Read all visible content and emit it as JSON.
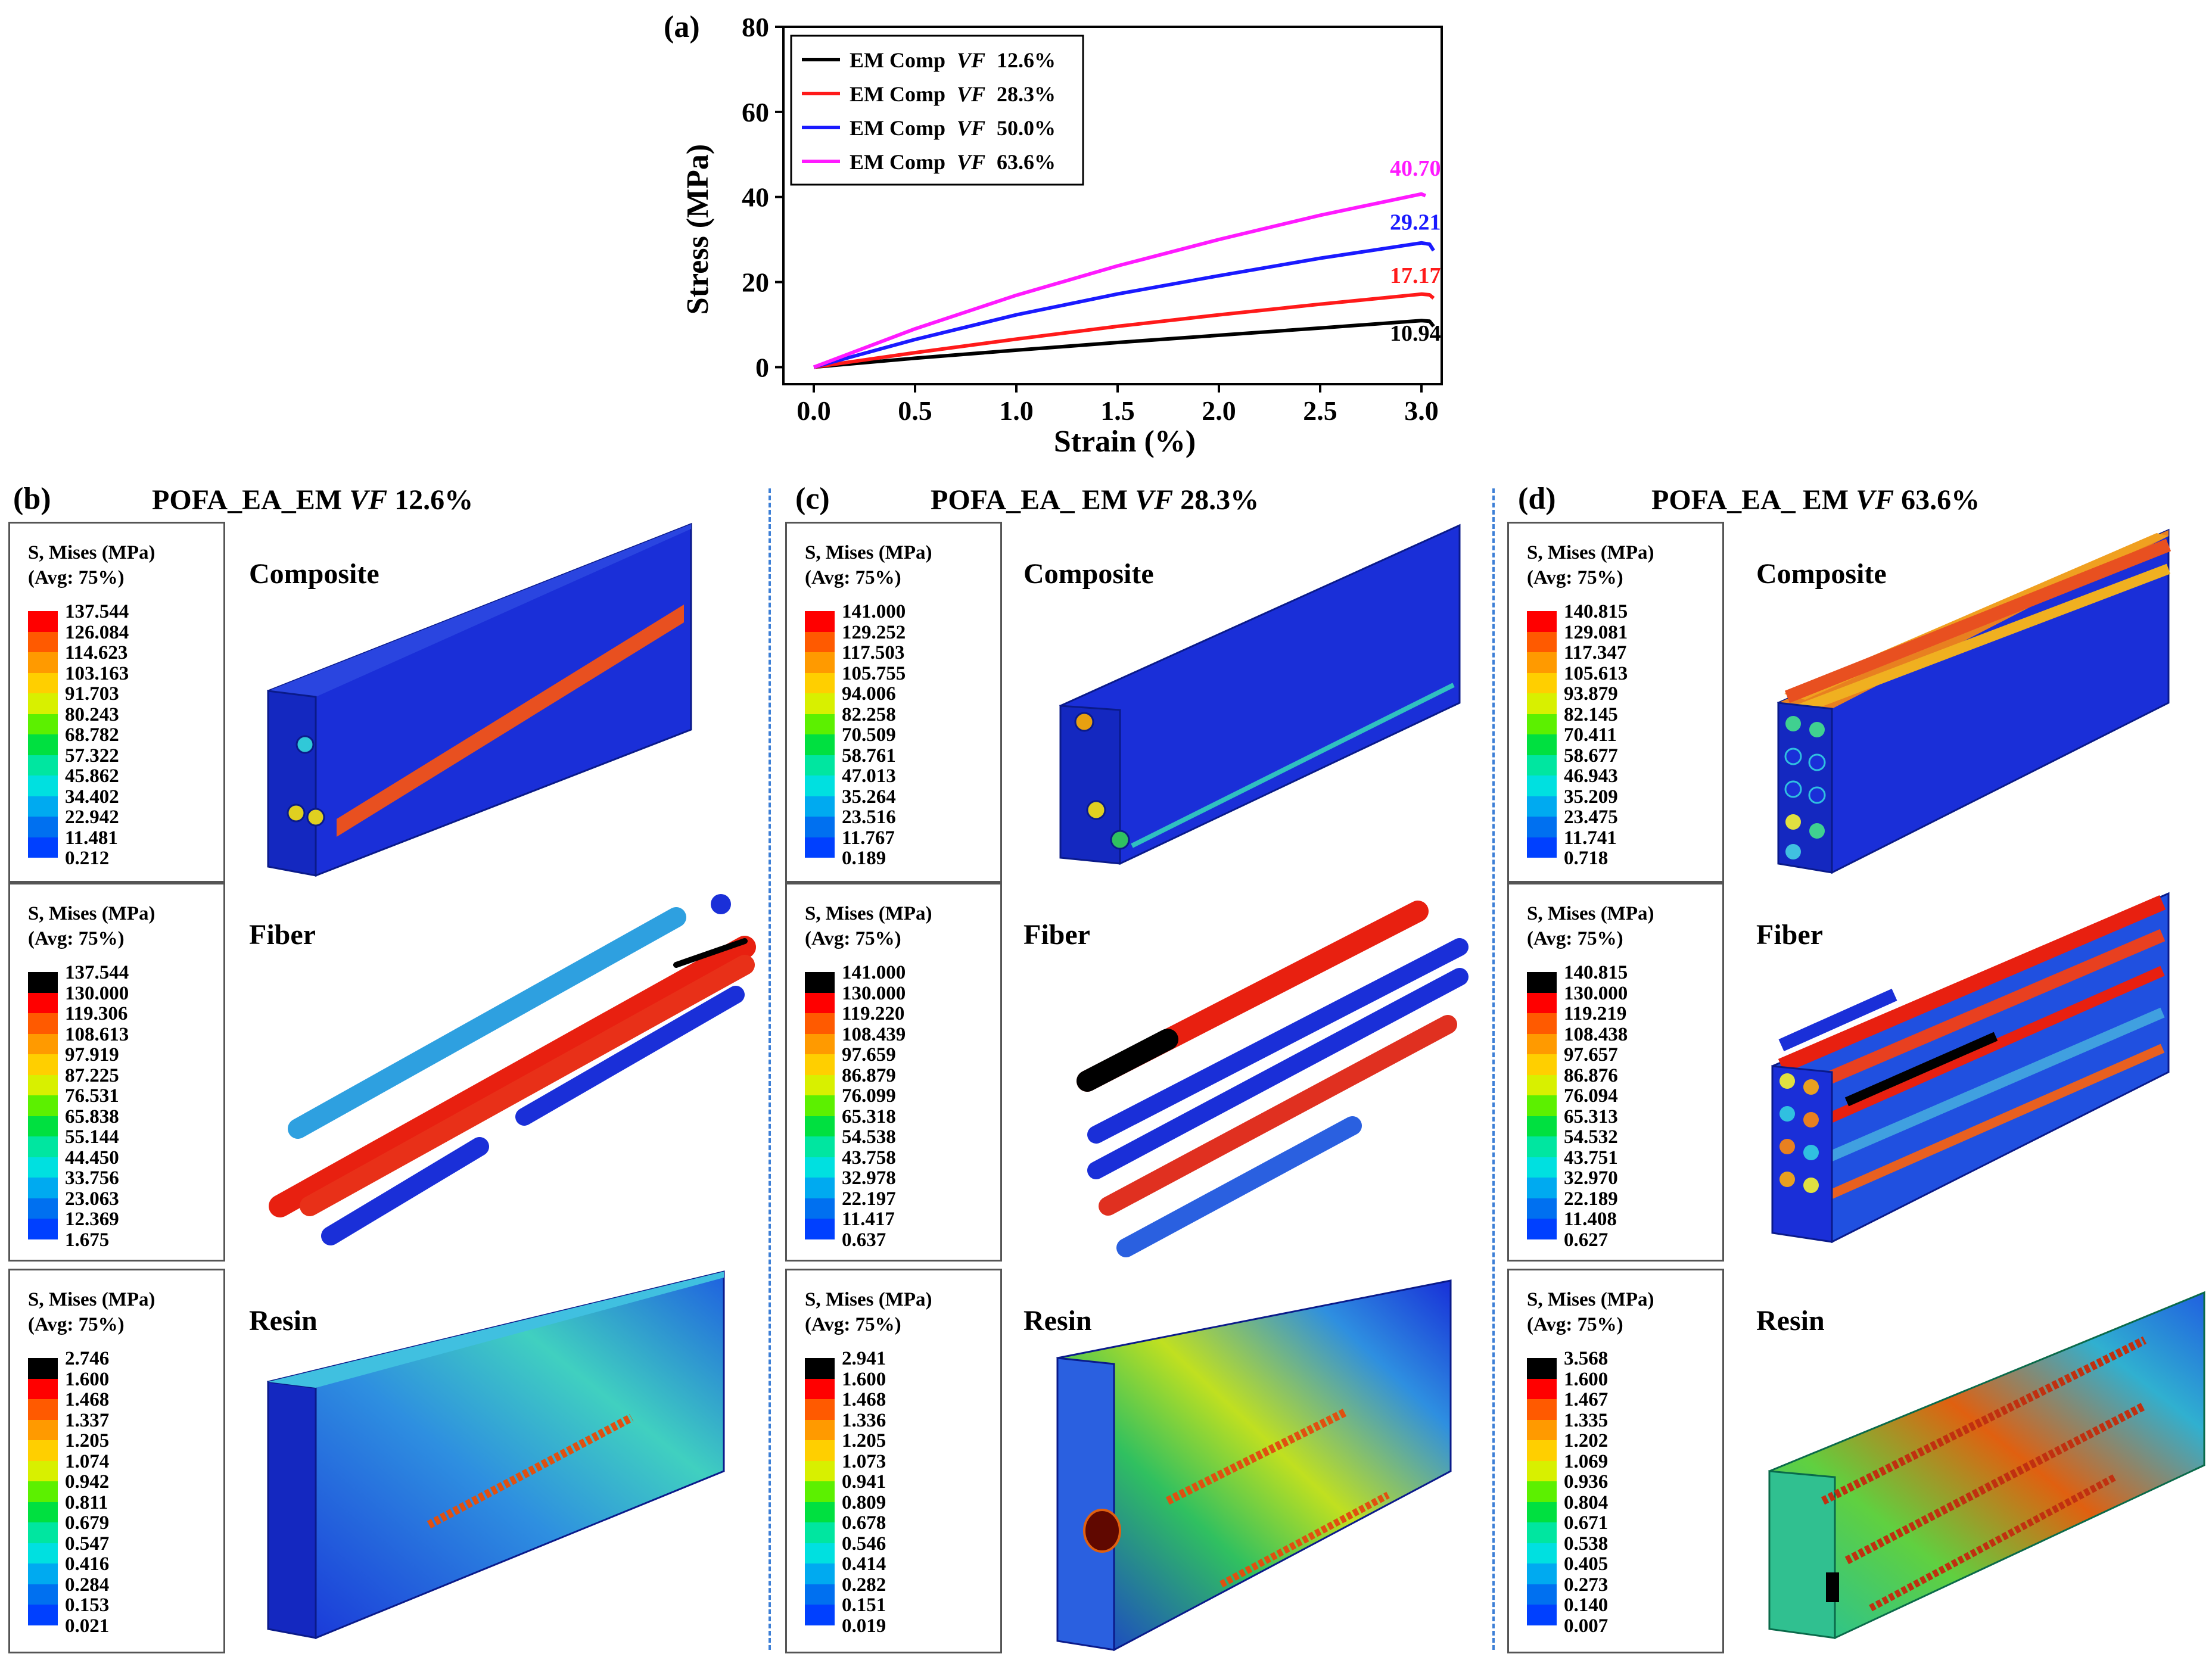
{
  "chart_data": {
    "type": "line",
    "panel_label": "(a)",
    "xlabel": "Strain (%)",
    "ylabel": "Stress (MPa)",
    "xlim": [
      -0.15,
      3.1
    ],
    "ylim": [
      -4,
      80
    ],
    "xticks": [
      "0.0",
      "0.5",
      "1.0",
      "1.5",
      "2.0",
      "2.5",
      "3.0"
    ],
    "yticks": [
      "0",
      "20",
      "40",
      "60",
      "80"
    ],
    "legend_position": "top-left",
    "series": [
      {
        "name": "EM Comp VF 12.6%",
        "prefix": "EM Comp ",
        "vf": "VF",
        "suffix": " 12.6%",
        "color": "#000000",
        "x": [
          0,
          0.5,
          1.0,
          1.5,
          2.0,
          2.5,
          3.0,
          3.04,
          3.06
        ],
        "y": [
          0,
          2.1,
          4.0,
          5.8,
          7.5,
          9.2,
          10.94,
          10.8,
          9.6
        ],
        "label": "10.94",
        "label_at": [
          2.97,
          6.2
        ]
      },
      {
        "name": "EM Comp VF 28.3%",
        "prefix": "EM Comp ",
        "vf": "VF",
        "suffix": " 28.3%",
        "color": "#ff1a1a",
        "x": [
          0,
          0.5,
          1.0,
          1.5,
          2.0,
          2.5,
          3.0,
          3.04,
          3.06
        ],
        "y": [
          0,
          3.4,
          6.6,
          9.6,
          12.3,
          14.8,
          17.17,
          17.0,
          16.2
        ],
        "label": "17.17",
        "label_at": [
          2.97,
          19.8
        ]
      },
      {
        "name": "EM Comp VF 50.0%",
        "prefix": "EM Comp ",
        "vf": "VF",
        "suffix": " 50.0%",
        "color": "#1a1aff",
        "x": [
          0,
          0.5,
          1.0,
          1.5,
          2.0,
          2.5,
          3.0,
          3.04,
          3.06
        ],
        "y": [
          0,
          6.5,
          12.3,
          17.2,
          21.5,
          25.6,
          29.21,
          28.9,
          27.4
        ],
        "label": "29.21",
        "label_at": [
          2.97,
          32.3
        ]
      },
      {
        "name": "EM Comp VF 63.6%",
        "prefix": "EM Comp ",
        "vf": "VF",
        "suffix": " 63.6%",
        "color": "#ff1aff",
        "x": [
          0,
          0.5,
          1.0,
          1.5,
          2.0,
          2.5,
          3.0,
          3.02
        ],
        "y": [
          0,
          9.0,
          16.9,
          23.8,
          30.0,
          35.7,
          40.7,
          40.3
        ],
        "label": "40.70",
        "label_at": [
          2.97,
          45.0
        ]
      }
    ]
  },
  "panels": [
    {
      "label": "(b)",
      "title_prefix": "POFA_EA_EM  ",
      "title_vf": "VF",
      "title_suffix": " 12.6%",
      "parts": [
        {
          "name": "Composite",
          "legend_line1": "S, Mises  (MPa)",
          "legend_line2": "(Avg: 75%)",
          "values": [
            "137.544",
            "126.084",
            "114.623",
            "103.163",
            "91.703",
            "80.243",
            "68.782",
            "57.322",
            "45.862",
            "34.402",
            "22.942",
            "11.481",
            "0.212"
          ]
        },
        {
          "name": "Fiber",
          "legend_line1": "S, Mises  (MPa)",
          "legend_line2": "(Avg: 75%)",
          "values": [
            "137.544",
            "130.000",
            "119.306",
            "108.613",
            "97.919",
            "87.225",
            "76.531",
            "65.838",
            "55.144",
            "44.450",
            "33.756",
            "23.063",
            "12.369",
            "1.675"
          ]
        },
        {
          "name": "Resin",
          "legend_line1": "S, Mises  (MPa)",
          "legend_line2": "(Avg: 75%)",
          "values": [
            "2.746",
            "1.600",
            "1.468",
            "1.337",
            "1.205",
            "1.074",
            "0.942",
            "0.811",
            "0.679",
            "0.547",
            "0.416",
            "0.284",
            "0.153",
            "0.021"
          ]
        }
      ]
    },
    {
      "label": "(c)",
      "title_prefix": "POFA_EA_ EM ",
      "title_vf": "VF",
      "title_suffix": " 28.3%",
      "parts": [
        {
          "name": "Composite",
          "legend_line1": "S, Mises  (MPa)",
          "legend_line2": "(Avg: 75%)",
          "values": [
            "141.000",
            "129.252",
            "117.503",
            "105.755",
            "94.006",
            "82.258",
            "70.509",
            "58.761",
            "47.013",
            "35.264",
            "23.516",
            "11.767",
            "0.189"
          ]
        },
        {
          "name": "Fiber",
          "legend_line1": "S, Mises  (MPa)",
          "legend_line2": "(Avg: 75%)",
          "values": [
            "141.000",
            "130.000",
            "119.220",
            "108.439",
            "97.659",
            "86.879",
            "76.099",
            "65.318",
            "54.538",
            "43.758",
            "32.978",
            "22.197",
            "11.417",
            "0.637"
          ]
        },
        {
          "name": "Resin",
          "legend_line1": "S, Mises  (MPa)",
          "legend_line2": "(Avg: 75%)",
          "values": [
            "2.941",
            "1.600",
            "1.468",
            "1.336",
            "1.205",
            "1.073",
            "0.941",
            "0.809",
            "0.678",
            "0.546",
            "0.414",
            "0.282",
            "0.151",
            "0.019"
          ]
        }
      ]
    },
    {
      "label": "(d)",
      "title_prefix": "POFA_EA_ EM ",
      "title_vf": "VF",
      "title_suffix": " 63.6%",
      "parts": [
        {
          "name": "Composite",
          "legend_line1": "S, Mises  (MPa)",
          "legend_line2": "(Avg: 75%)",
          "values": [
            "140.815",
            "129.081",
            "117.347",
            "105.613",
            "93.879",
            "82.145",
            "70.411",
            "58.677",
            "46.943",
            "35.209",
            "23.475",
            "11.741",
            "0.718"
          ]
        },
        {
          "name": "Fiber",
          "legend_line1": "S, Mises  (MPa)",
          "legend_line2": "(Avg: 75%)",
          "values": [
            "140.815",
            "130.000",
            "119.219",
            "108.438",
            "97.657",
            "86.876",
            "76.094",
            "65.313",
            "54.532",
            "43.751",
            "32.970",
            "22.189",
            "11.408",
            "0.627"
          ]
        },
        {
          "name": "Resin",
          "legend_line1": "S, Mises  (MPa)",
          "legend_line2": "(Avg: 75%)",
          "values": [
            "3.568",
            "1.600",
            "1.467",
            "1.335",
            "1.202",
            "1.069",
            "0.936",
            "0.804",
            "0.671",
            "0.538",
            "0.405",
            "0.273",
            "0.140",
            "0.007"
          ]
        }
      ]
    }
  ],
  "colors": {
    "contour_13": [
      "#ff0000",
      "#ff5a00",
      "#ff9a00",
      "#ffcf00",
      "#d8f000",
      "#5cf000",
      "#00e040",
      "#00e6a0",
      "#00e0e0",
      "#00aaf0",
      "#0070f0",
      "#0040ff",
      "#0000ff"
    ],
    "contour_14": [
      "#000000",
      "#ff0000",
      "#ff5a00",
      "#ff9a00",
      "#ffcf00",
      "#d8f000",
      "#5cf000",
      "#00e040",
      "#00e6a0",
      "#00e0e0",
      "#00aaf0",
      "#0070f0",
      "#0040ff",
      "#0000ff"
    ],
    "mesh_blue": "#1830d8",
    "divider": "#3d7fd6"
  }
}
